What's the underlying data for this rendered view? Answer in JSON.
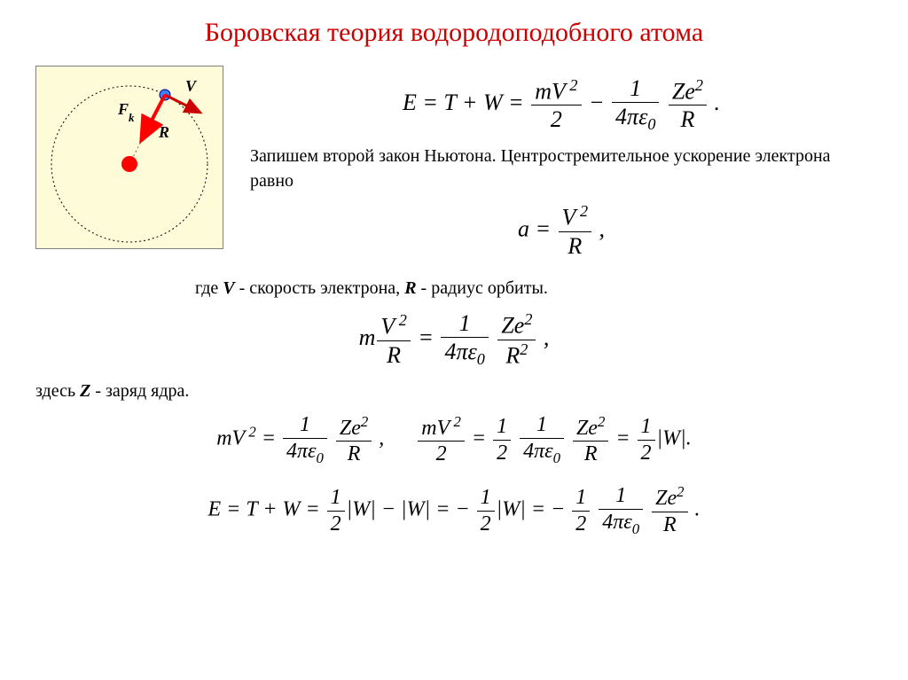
{
  "title": "Боровская теория водородоподобного атома",
  "title_color": "#cc0000",
  "diagram": {
    "bg_color": "#fefbd8",
    "border_color": "#808080",
    "orbit_color": "#000000",
    "nucleus_color": "#ff0000",
    "electron_fill": "#4080ff",
    "electron_stroke": "#000080",
    "velocity_arrow_color": "#cc0000",
    "force_arrow_color": "#ff0000",
    "radius_line_color": "#666666",
    "label_V": "V",
    "label_Fk": "Fₖ",
    "label_R": "R"
  },
  "equations": {
    "eq1_html": "<i>E</i> = <i>T</i> + <i>W</i> = <span class='frac'><span class='num'><i>mV</i><sup> 2</sup></span><span class='den'>2</span></span> − <span class='frac'><span class='num'>1</span><span class='den'>4<i>πε</i><sub>0</sub></span></span> <span class='frac'><span class='num'><i>Ze</i><sup>2</sup></span><span class='den'><i>R</i></span></span> .",
    "text1": "Запишем второй закон Ньютона. Центростремительное ускорение электрона равно",
    "eq2_html": "<i>a</i> = <span class='frac'><span class='num'><i>V</i><sup> 2</sup></span><span class='den'><i>R</i></span></span> ,",
    "text2_prefix": "где ",
    "text2_v": "V",
    "text2_mid": " -  скорость электрона, ",
    "text2_r": "R",
    "text2_suffix": " - радиус орбиты.",
    "eq3_html": "<i>m</i><span class='frac'><span class='num'><i>V</i><sup> 2</sup></span><span class='den'><i>R</i></span></span> = <span class='frac'><span class='num'>1</span><span class='den'>4<i>πε</i><sub>0</sub></span></span> <span class='frac'><span class='num'><i>Ze</i><sup>2</sup></span><span class='den'><i>R</i><sup>2</sup></span></span> ,",
    "text3_prefix": "здесь ",
    "text3_z": "Z",
    "text3_suffix": " -  заряд ядра.",
    "eq4_html": "<i>mV</i><sup> 2</sup> = <span class='frac'><span class='num'>1</span><span class='den'>4<i>πε</i><sub>0</sub></span></span> <span class='frac'><span class='num'><i>Ze</i><sup>2</sup></span><span class='den'><i>R</i></span></span> , &nbsp;&nbsp;&nbsp;&nbsp; <span class='frac'><span class='num'><i>mV</i><sup> 2</sup></span><span class='den'>2</span></span> = <span class='frac'><span class='num'>1</span><span class='den'>2</span></span> <span class='frac'><span class='num'>1</span><span class='den'>4<i>πε</i><sub>0</sub></span></span> <span class='frac'><span class='num'><i>Ze</i><sup>2</sup></span><span class='den'><i>R</i></span></span> = <span class='frac'><span class='num'>1</span><span class='den'>2</span></span>|<i>W</i>|.",
    "eq5_html": "<i>E</i> = <i>T</i> + <i>W</i> = <span class='frac'><span class='num'>1</span><span class='den'>2</span></span>|<i>W</i>| − |<i>W</i>| = − <span class='frac'><span class='num'>1</span><span class='den'>2</span></span>|<i>W</i>| = − <span class='frac'><span class='num'>1</span><span class='den'>2</span></span> <span class='frac'><span class='num'>1</span><span class='den'>4<i>πε</i><sub>0</sub></span></span> <span class='frac'><span class='num'><i>Ze</i><sup>2</sup></span><span class='den'><i>R</i></span></span> ."
  },
  "fonts": {
    "title_size": 30,
    "body_size": 20,
    "formula_size": 22
  },
  "colors": {
    "text": "#000000",
    "background": "#ffffff"
  }
}
